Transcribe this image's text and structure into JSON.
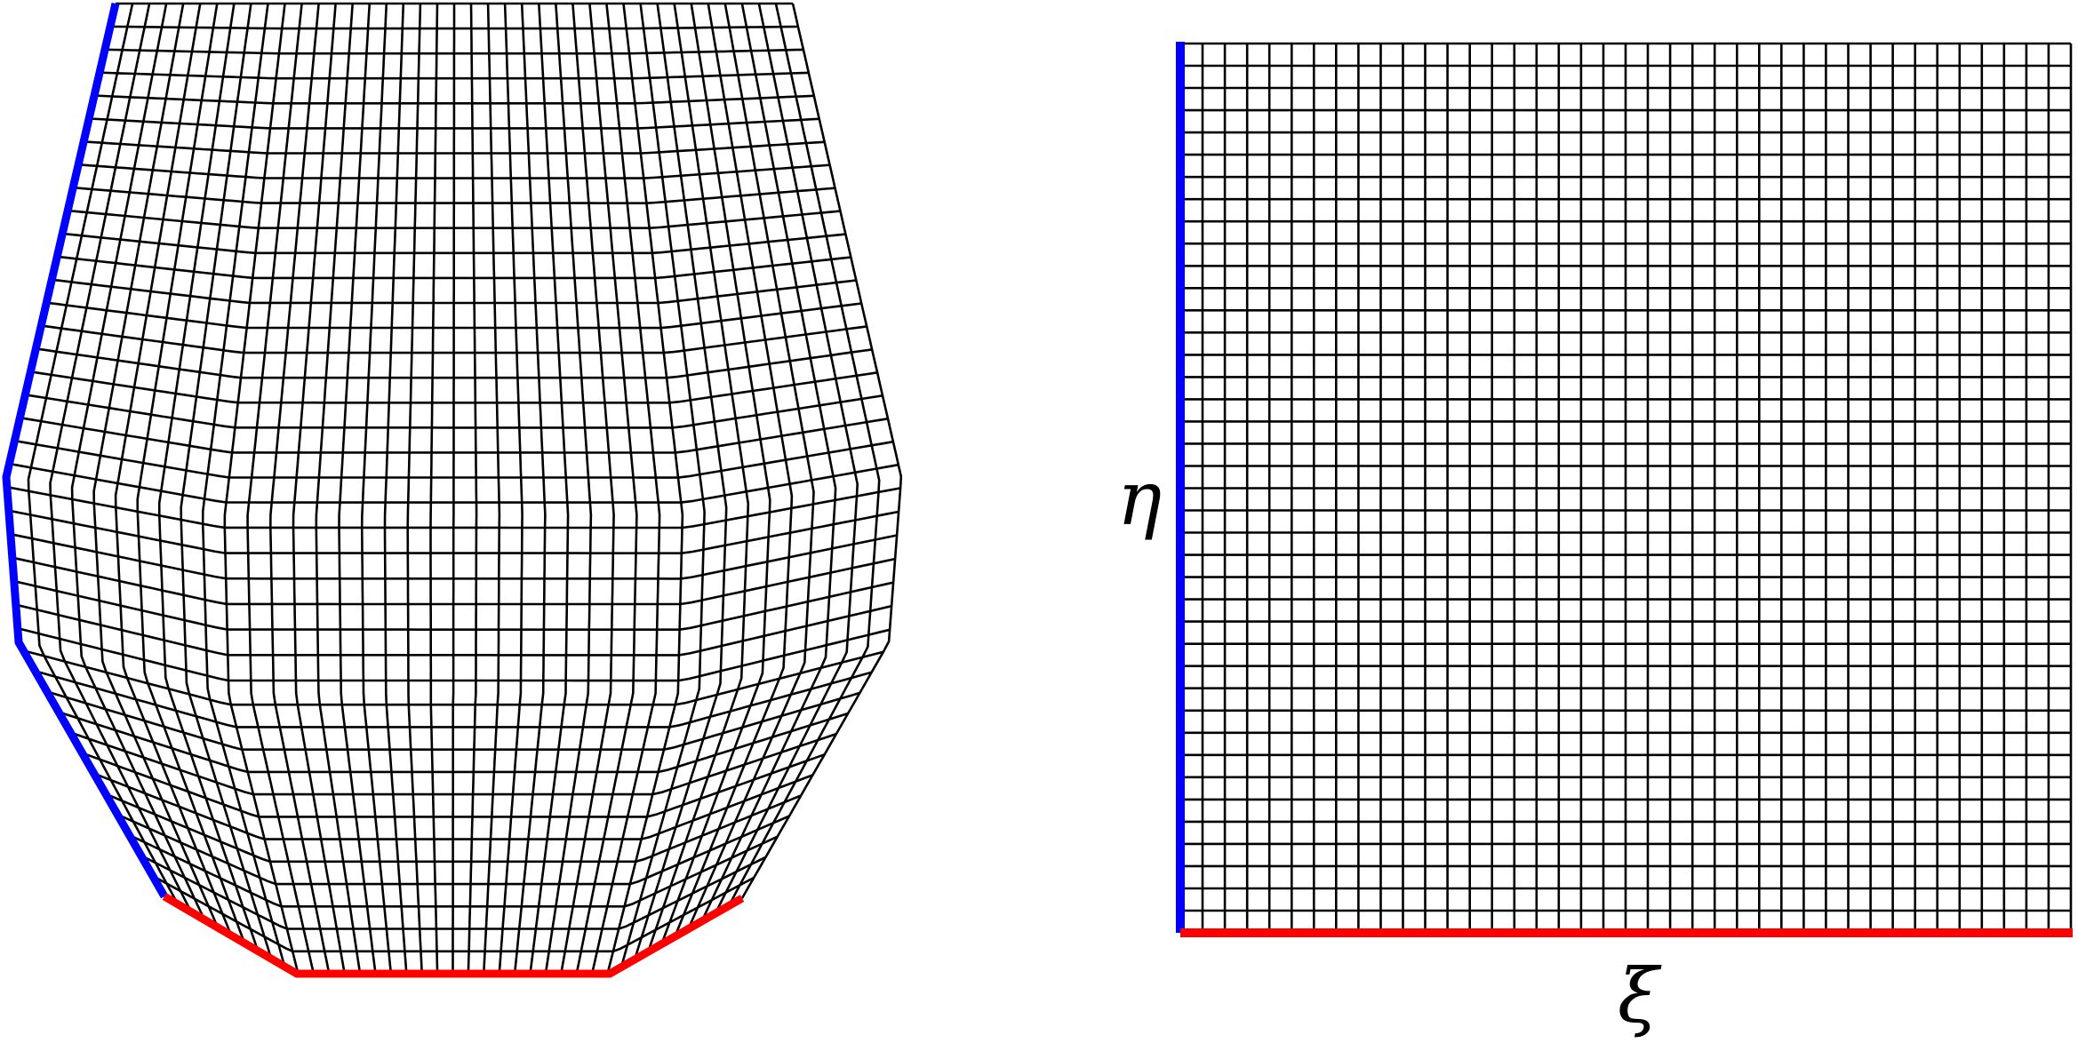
{
  "labels": {
    "eta": "η",
    "xi": "ξ"
  }
}
